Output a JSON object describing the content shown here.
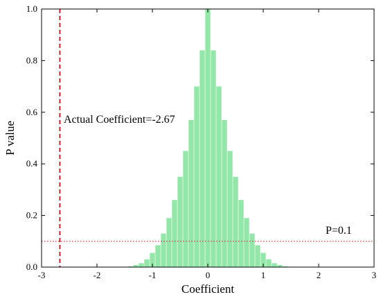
{
  "chart_data": {
    "type": "bar",
    "title": "",
    "xlabel": "Coefficient",
    "ylabel": "P value",
    "xlim": [
      -3,
      3
    ],
    "ylim": [
      0,
      1.0
    ],
    "x_ticks": [
      "-3",
      "-2",
      "-1",
      "0",
      "1",
      "2",
      "3"
    ],
    "y_ticks": [
      "0.0",
      "0.2",
      "0.4",
      "0.6",
      "0.8",
      "1.0"
    ],
    "grid": false,
    "series": [
      {
        "style": "dense vertical bars",
        "color": "#7fe39a",
        "x": [
          -1.5,
          -1.4,
          -1.3,
          -1.2,
          -1.1,
          -1.0,
          -0.9,
          -0.8,
          -0.7,
          -0.6,
          -0.5,
          -0.4,
          -0.3,
          -0.2,
          -0.1,
          0.0,
          0.1,
          0.2,
          0.3,
          0.4,
          0.5,
          0.6,
          0.7,
          0.8,
          0.9,
          1.0,
          1.1,
          1.2,
          1.3,
          1.4,
          1.5
        ],
        "values": [
          0.0,
          0.003,
          0.008,
          0.015,
          0.03,
          0.055,
          0.085,
          0.13,
          0.19,
          0.26,
          0.35,
          0.45,
          0.57,
          0.7,
          0.84,
          1.0,
          0.84,
          0.7,
          0.57,
          0.45,
          0.35,
          0.26,
          0.19,
          0.13,
          0.085,
          0.055,
          0.03,
          0.015,
          0.008,
          0.003,
          0.0
        ]
      }
    ],
    "reference_lines": [
      {
        "orientation": "vertical",
        "value": -2.67,
        "color": "#e02020",
        "style": "dashed",
        "label": "Actual Coefficient=-2.67"
      },
      {
        "orientation": "horizontal",
        "value": 0.1,
        "color": "#c03030",
        "style": "dotted",
        "label": "P=0.1"
      }
    ]
  }
}
